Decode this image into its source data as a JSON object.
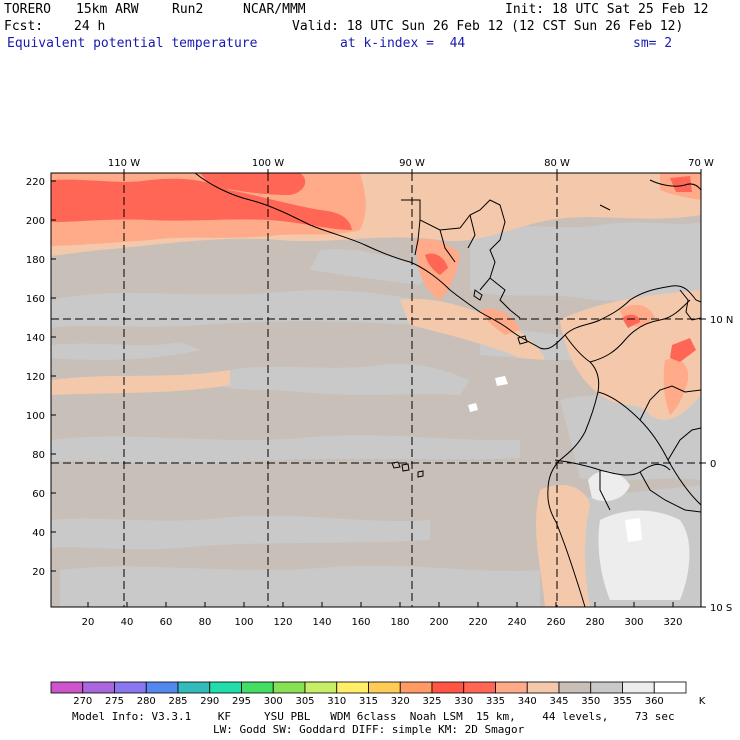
{
  "header": {
    "model": "TORERO",
    "resolution": "15km ARW",
    "run": "Run2",
    "org": "NCAR/MMM",
    "init": "Init: 18 UTC Sat 25 Feb 12",
    "fcst_label": "Fcst:",
    "fcst_value": "24 h",
    "valid": "Valid: 18 UTC Sun 26 Feb 12 (12 CST Sun 26 Feb 12)",
    "field": "Equivalent potential temperature",
    "level": "at k-index =  44",
    "smooth": "sm= 2"
  },
  "map": {
    "top_lon_labels": [
      "110 W",
      "100 W",
      "90 W",
      "80 W",
      "70 W"
    ],
    "right_lat_labels": [
      "10 N",
      "0",
      "10 S"
    ],
    "left_ticks": [
      "220",
      "200",
      "180",
      "160",
      "140",
      "120",
      "100",
      "80",
      "60",
      "40",
      "20"
    ],
    "bottom_ticks": [
      "20",
      "40",
      "60",
      "80",
      "100",
      "120",
      "140",
      "160",
      "180",
      "200",
      "220",
      "240",
      "260",
      "280",
      "300",
      "320"
    ]
  },
  "colorbar": {
    "levels": [
      "270",
      "275",
      "280",
      "285",
      "290",
      "295",
      "300",
      "305",
      "310",
      "315",
      "320",
      "325",
      "330",
      "335",
      "340",
      "345",
      "350",
      "355",
      "360"
    ],
    "unit": "K",
    "colors": [
      "#cc55cc",
      "#aa66dd",
      "#8877ee",
      "#5588ee",
      "#33bbbb",
      "#22ddaa",
      "#44dd66",
      "#88e055",
      "#c8ee66",
      "#ffee66",
      "#ffcc55",
      "#ff9966",
      "#ff5544",
      "#ff6655",
      "#ffaa88",
      "#f4c9ab",
      "#c8bfb8",
      "#c9c9c9",
      "#ededed",
      "#ffffff"
    ]
  },
  "footer": {
    "line1": "Model Info: V3.3.1    KF     YSU PBL   WDM 6class  Noah LSM  15 km,    44 levels,    73 sec",
    "line2": "LW: Godd SW: Goddard DIFF: simple KM: 2D Smagor"
  }
}
